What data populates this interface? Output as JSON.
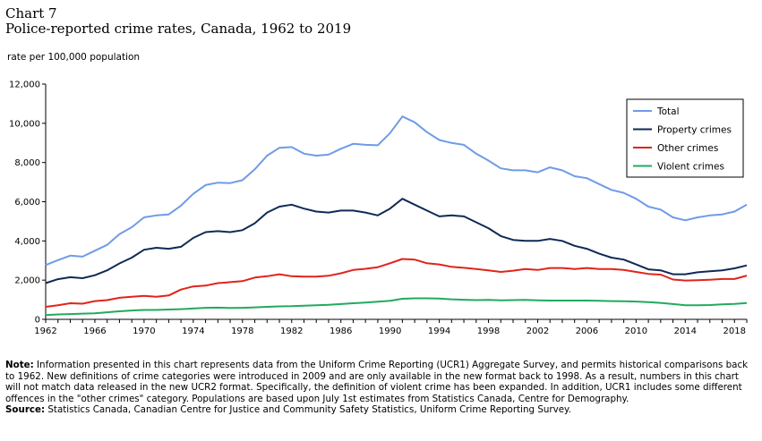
{
  "chart_number": "Chart 7",
  "notes": {
    "note_label": "Note:",
    "note_text": "Information presented in this chart represents data from the Uniform Crime Reporting (UCR1) Aggregate Survey, and permits historical comparisons back to 1962. New definitions of crime categories were introduced in 2009 and are only available in the new format back to 1998. As a result, numbers in this chart will not match data released in the new UCR2 format. Specifically, the definition of violent crime has been expanded. In addition, UCR1 includes some different offences in the \"other crimes\" category. Populations are based upon July 1st estimates from Statistics Canada, Centre for Demography.",
    "source_label": "Source:",
    "source_text": "Statistics Canada, Canadian Centre for Justice and Community Safety Statistics, Uniform Crime Reporting Survey."
  },
  "chart_data": {
    "type": "line",
    "title": "Police-reported crime rates, Canada, 1962 to 2019",
    "xlabel": "",
    "ylabel": "rate per 100,000 population",
    "xlim": [
      1962,
      2019
    ],
    "ylim": [
      0,
      12000
    ],
    "x_ticks": [
      1962,
      1966,
      1970,
      1974,
      1978,
      1982,
      1986,
      1990,
      1994,
      1998,
      2002,
      2006,
      2010,
      2014,
      2018
    ],
    "y_ticks": [
      0,
      2000,
      4000,
      6000,
      8000,
      10000,
      12000
    ],
    "y_tick_labels": [
      "0",
      "2,000",
      "4,000",
      "6,000",
      "8,000",
      "10,000",
      "12,000"
    ],
    "grid": false,
    "legend_position": "top-right",
    "x": [
      1962,
      1963,
      1964,
      1965,
      1966,
      1967,
      1968,
      1969,
      1970,
      1971,
      1972,
      1973,
      1974,
      1975,
      1976,
      1977,
      1978,
      1979,
      1980,
      1981,
      1982,
      1983,
      1984,
      1985,
      1986,
      1987,
      1988,
      1989,
      1990,
      1991,
      1992,
      1993,
      1994,
      1995,
      1996,
      1997,
      1998,
      1999,
      2000,
      2001,
      2002,
      2003,
      2004,
      2005,
      2006,
      2007,
      2008,
      2009,
      2010,
      2011,
      2012,
      2013,
      2014,
      2015,
      2016,
      2017,
      2018,
      2019
    ],
    "series": [
      {
        "name": "Total",
        "color": "#6f9be8",
        "values": [
          2770,
          3020,
          3250,
          3200,
          3500,
          3800,
          4350,
          4700,
          5200,
          5300,
          5350,
          5800,
          6400,
          6850,
          6970,
          6950,
          7100,
          7650,
          8350,
          8750,
          8790,
          8450,
          8350,
          8400,
          8700,
          8950,
          8900,
          8880,
          9500,
          10350,
          10050,
          9550,
          9150,
          9000,
          8900,
          8450,
          8100,
          7700,
          7600,
          7600,
          7500,
          7750,
          7600,
          7300,
          7200,
          6900,
          6600,
          6450,
          6150,
          5750,
          5600,
          5200,
          5050,
          5200,
          5300,
          5350,
          5500,
          5850
        ]
      },
      {
        "name": "Property crimes",
        "color": "#0f2a55",
        "values": [
          1850,
          2050,
          2150,
          2100,
          2250,
          2500,
          2850,
          3150,
          3550,
          3650,
          3600,
          3700,
          4150,
          4450,
          4500,
          4450,
          4550,
          4900,
          5450,
          5750,
          5850,
          5650,
          5500,
          5450,
          5550,
          5550,
          5450,
          5300,
          5650,
          6150,
          5850,
          5550,
          5250,
          5300,
          5250,
          4950,
          4650,
          4250,
          4050,
          4000,
          4000,
          4100,
          4000,
          3750,
          3600,
          3350,
          3150,
          3050,
          2800,
          2550,
          2500,
          2300,
          2300,
          2400,
          2450,
          2500,
          2600,
          2750
        ]
      },
      {
        "name": "Other crimes",
        "color": "#e2231a",
        "values": [
          640,
          720,
          820,
          800,
          930,
          980,
          1100,
          1150,
          1200,
          1150,
          1220,
          1520,
          1680,
          1720,
          1850,
          1900,
          1950,
          2130,
          2200,
          2300,
          2200,
          2180,
          2180,
          2220,
          2350,
          2520,
          2580,
          2660,
          2860,
          3080,
          3050,
          2860,
          2800,
          2680,
          2630,
          2570,
          2500,
          2420,
          2480,
          2570,
          2520,
          2620,
          2620,
          2570,
          2620,
          2570,
          2570,
          2520,
          2420,
          2320,
          2280,
          2030,
          1980,
          2000,
          2020,
          2060,
          2060,
          2230
        ]
      },
      {
        "name": "Violent crimes",
        "color": "#22aa5f",
        "values": [
          220,
          250,
          270,
          290,
          310,
          360,
          410,
          450,
          480,
          480,
          500,
          520,
          550,
          590,
          600,
          580,
          590,
          610,
          640,
          660,
          670,
          700,
          720,
          740,
          780,
          820,
          860,
          900,
          950,
          1050,
          1070,
          1070,
          1060,
          1020,
          1000,
          980,
          990,
          970,
          980,
          990,
          970,
          960,
          960,
          960,
          960,
          950,
          930,
          920,
          910,
          880,
          840,
          780,
          720,
          720,
          730,
          760,
          790,
          830
        ]
      }
    ]
  }
}
